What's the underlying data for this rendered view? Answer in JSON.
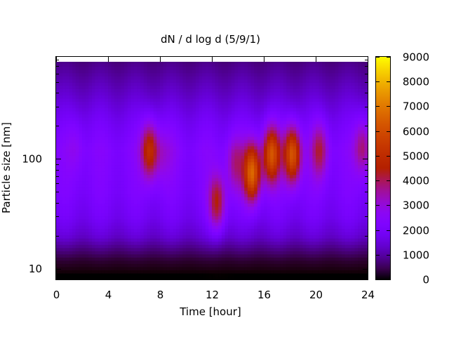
{
  "chart_data": {
    "type": "heatmap",
    "title": "dN / d log d (5/9/1)",
    "xlabel": "Time [hour]",
    "ylabel": "Particle size [nm]",
    "x_range": [
      0,
      24
    ],
    "x_ticks": [
      0,
      4,
      8,
      12,
      16,
      20,
      24
    ],
    "x_tick_labels": [
      "0",
      "4",
      "8",
      "12",
      "16",
      "20",
      "24"
    ],
    "y_scale": "log",
    "y_range_nm": [
      8,
      850
    ],
    "y_ticks": [
      10,
      100
    ],
    "y_tick_labels": [
      "10",
      "100"
    ],
    "colorbar": {
      "palette": "black-purple-red-orange-yellow",
      "range": [
        0,
        9000
      ],
      "ticks": [
        0,
        1000,
        2000,
        3000,
        4000,
        5000,
        6000,
        7000,
        8000,
        9000
      ],
      "tick_labels": [
        "0",
        "1000",
        "2000",
        "3000",
        "4000",
        "5000",
        "6000",
        "7000",
        "8000",
        "9000"
      ]
    },
    "background_level": {
      "description": "size-distribution baseline (dN/dlogd) by particle size",
      "size_nm": [
        9,
        12,
        15,
        20,
        30,
        50,
        80,
        120,
        200,
        400,
        800
      ],
      "value": [
        0,
        300,
        800,
        1500,
        2000,
        2300,
        2400,
        2500,
        2100,
        1400,
        800
      ]
    },
    "enhancements": [
      {
        "time_h": 1.5,
        "size_nm": 130,
        "peak": 2800
      },
      {
        "time_h": 7.2,
        "size_nm": 120,
        "peak": 5200
      },
      {
        "time_h": 8.2,
        "size_nm": 110,
        "peak": 3000
      },
      {
        "time_h": 9.1,
        "size_nm": 120,
        "peak": 2500
      },
      {
        "time_h": 12.4,
        "size_nm": 40,
        "peak": 4800
      },
      {
        "time_h": 13.8,
        "size_nm": 90,
        "peak": 3800
      },
      {
        "time_h": 15.1,
        "size_nm": 75,
        "peak": 6800
      },
      {
        "time_h": 16.6,
        "size_nm": 110,
        "peak": 6200
      },
      {
        "time_h": 18.2,
        "size_nm": 110,
        "peak": 6400
      },
      {
        "time_h": 20.3,
        "size_nm": 120,
        "peak": 4200
      },
      {
        "time_h": 23.6,
        "size_nm": 130,
        "peak": 4000
      }
    ]
  }
}
